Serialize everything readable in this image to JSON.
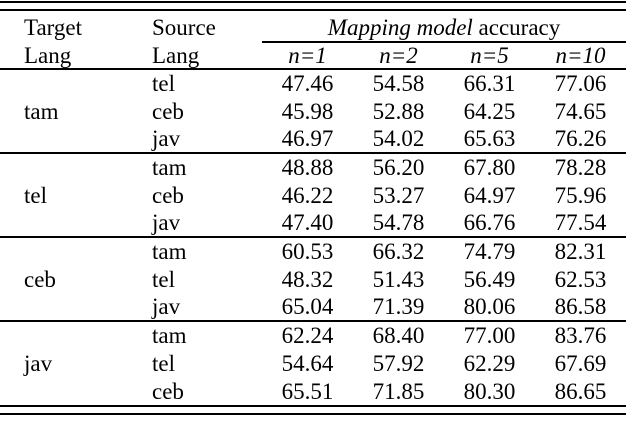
{
  "header": {
    "target_line1": "Target",
    "target_line2": "Lang",
    "source_line1": "Source",
    "source_line2": "Lang",
    "accuracy_title_italic": "Mapping model",
    "accuracy_title_rest": " accuracy",
    "subcols": [
      "n=1",
      "n=2",
      "n=5",
      "n=10"
    ]
  },
  "groups": [
    {
      "target": "tam",
      "rows": [
        {
          "source": "tel",
          "values": [
            "47.46",
            "54.58",
            "66.31",
            "77.06"
          ]
        },
        {
          "source": "ceb",
          "values": [
            "45.98",
            "52.88",
            "64.25",
            "74.65"
          ]
        },
        {
          "source": "jav",
          "values": [
            "46.97",
            "54.02",
            "65.63",
            "76.26"
          ]
        }
      ]
    },
    {
      "target": "tel",
      "rows": [
        {
          "source": "tam",
          "values": [
            "48.88",
            "56.20",
            "67.80",
            "78.28"
          ]
        },
        {
          "source": "ceb",
          "values": [
            "46.22",
            "53.27",
            "64.97",
            "75.96"
          ]
        },
        {
          "source": "jav",
          "values": [
            "47.40",
            "54.78",
            "66.76",
            "77.54"
          ]
        }
      ]
    },
    {
      "target": "ceb",
      "rows": [
        {
          "source": "tam",
          "values": [
            "60.53",
            "66.32",
            "74.79",
            "82.31"
          ]
        },
        {
          "source": "tel",
          "values": [
            "48.32",
            "51.43",
            "56.49",
            "62.53"
          ]
        },
        {
          "source": "jav",
          "values": [
            "65.04",
            "71.39",
            "80.06",
            "86.58"
          ]
        }
      ]
    },
    {
      "target": "jav",
      "rows": [
        {
          "source": "tam",
          "values": [
            "62.24",
            "68.40",
            "77.00",
            "83.76"
          ]
        },
        {
          "source": "tel",
          "values": [
            "54.64",
            "57.92",
            "62.29",
            "67.69"
          ]
        },
        {
          "source": "ceb",
          "values": [
            "65.51",
            "71.85",
            "80.30",
            "86.65"
          ]
        }
      ]
    }
  ],
  "chart_data": {
    "type": "table",
    "title": "Mapping model accuracy",
    "columns": [
      "Target Lang",
      "Source Lang",
      "n=1",
      "n=2",
      "n=5",
      "n=10"
    ],
    "rows": [
      [
        "tam",
        "tel",
        47.46,
        54.58,
        66.31,
        77.06
      ],
      [
        "tam",
        "ceb",
        45.98,
        52.88,
        64.25,
        74.65
      ],
      [
        "tam",
        "jav",
        46.97,
        54.02,
        65.63,
        76.26
      ],
      [
        "tel",
        "tam",
        48.88,
        56.2,
        67.8,
        78.28
      ],
      [
        "tel",
        "ceb",
        46.22,
        53.27,
        64.97,
        75.96
      ],
      [
        "tel",
        "jav",
        47.4,
        54.78,
        66.76,
        77.54
      ],
      [
        "ceb",
        "tam",
        60.53,
        66.32,
        74.79,
        82.31
      ],
      [
        "ceb",
        "tel",
        48.32,
        51.43,
        56.49,
        62.53
      ],
      [
        "ceb",
        "jav",
        65.04,
        71.39,
        80.06,
        86.58
      ],
      [
        "jav",
        "tam",
        62.24,
        68.4,
        77.0,
        83.76
      ],
      [
        "jav",
        "tel",
        54.64,
        57.92,
        62.29,
        67.69
      ],
      [
        "jav",
        "ceb",
        65.51,
        71.85,
        80.3,
        86.65
      ]
    ]
  },
  "colors": {
    "text": "#000000",
    "background": "#ffffff",
    "rule": "#000000"
  }
}
